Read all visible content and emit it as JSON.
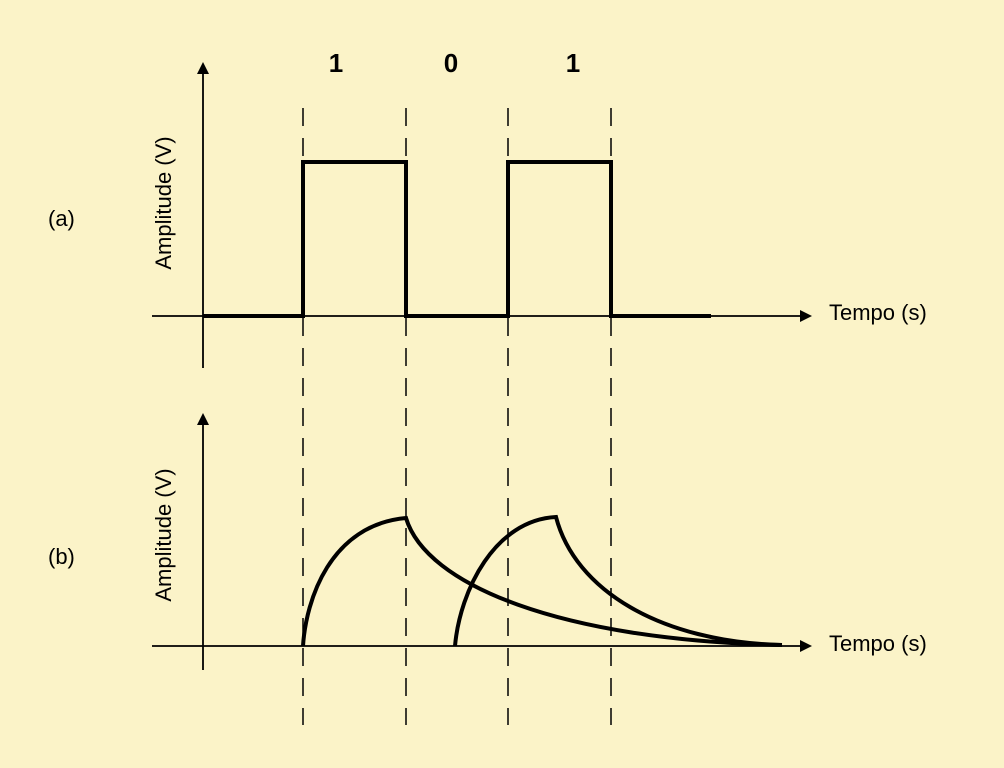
{
  "figure": {
    "bits": [
      "1",
      "0",
      "1"
    ],
    "panel_a": {
      "label": "(a)",
      "y_axis_label": "Amplitude (V)",
      "x_axis_label": "Tempo (s)"
    },
    "panel_b": {
      "label": "(b)",
      "y_axis_label": "Amplitude (V)",
      "x_axis_label": "Tempo (s)"
    },
    "colors": {
      "background": "#fbf3c8",
      "ink": "#000000"
    }
  }
}
